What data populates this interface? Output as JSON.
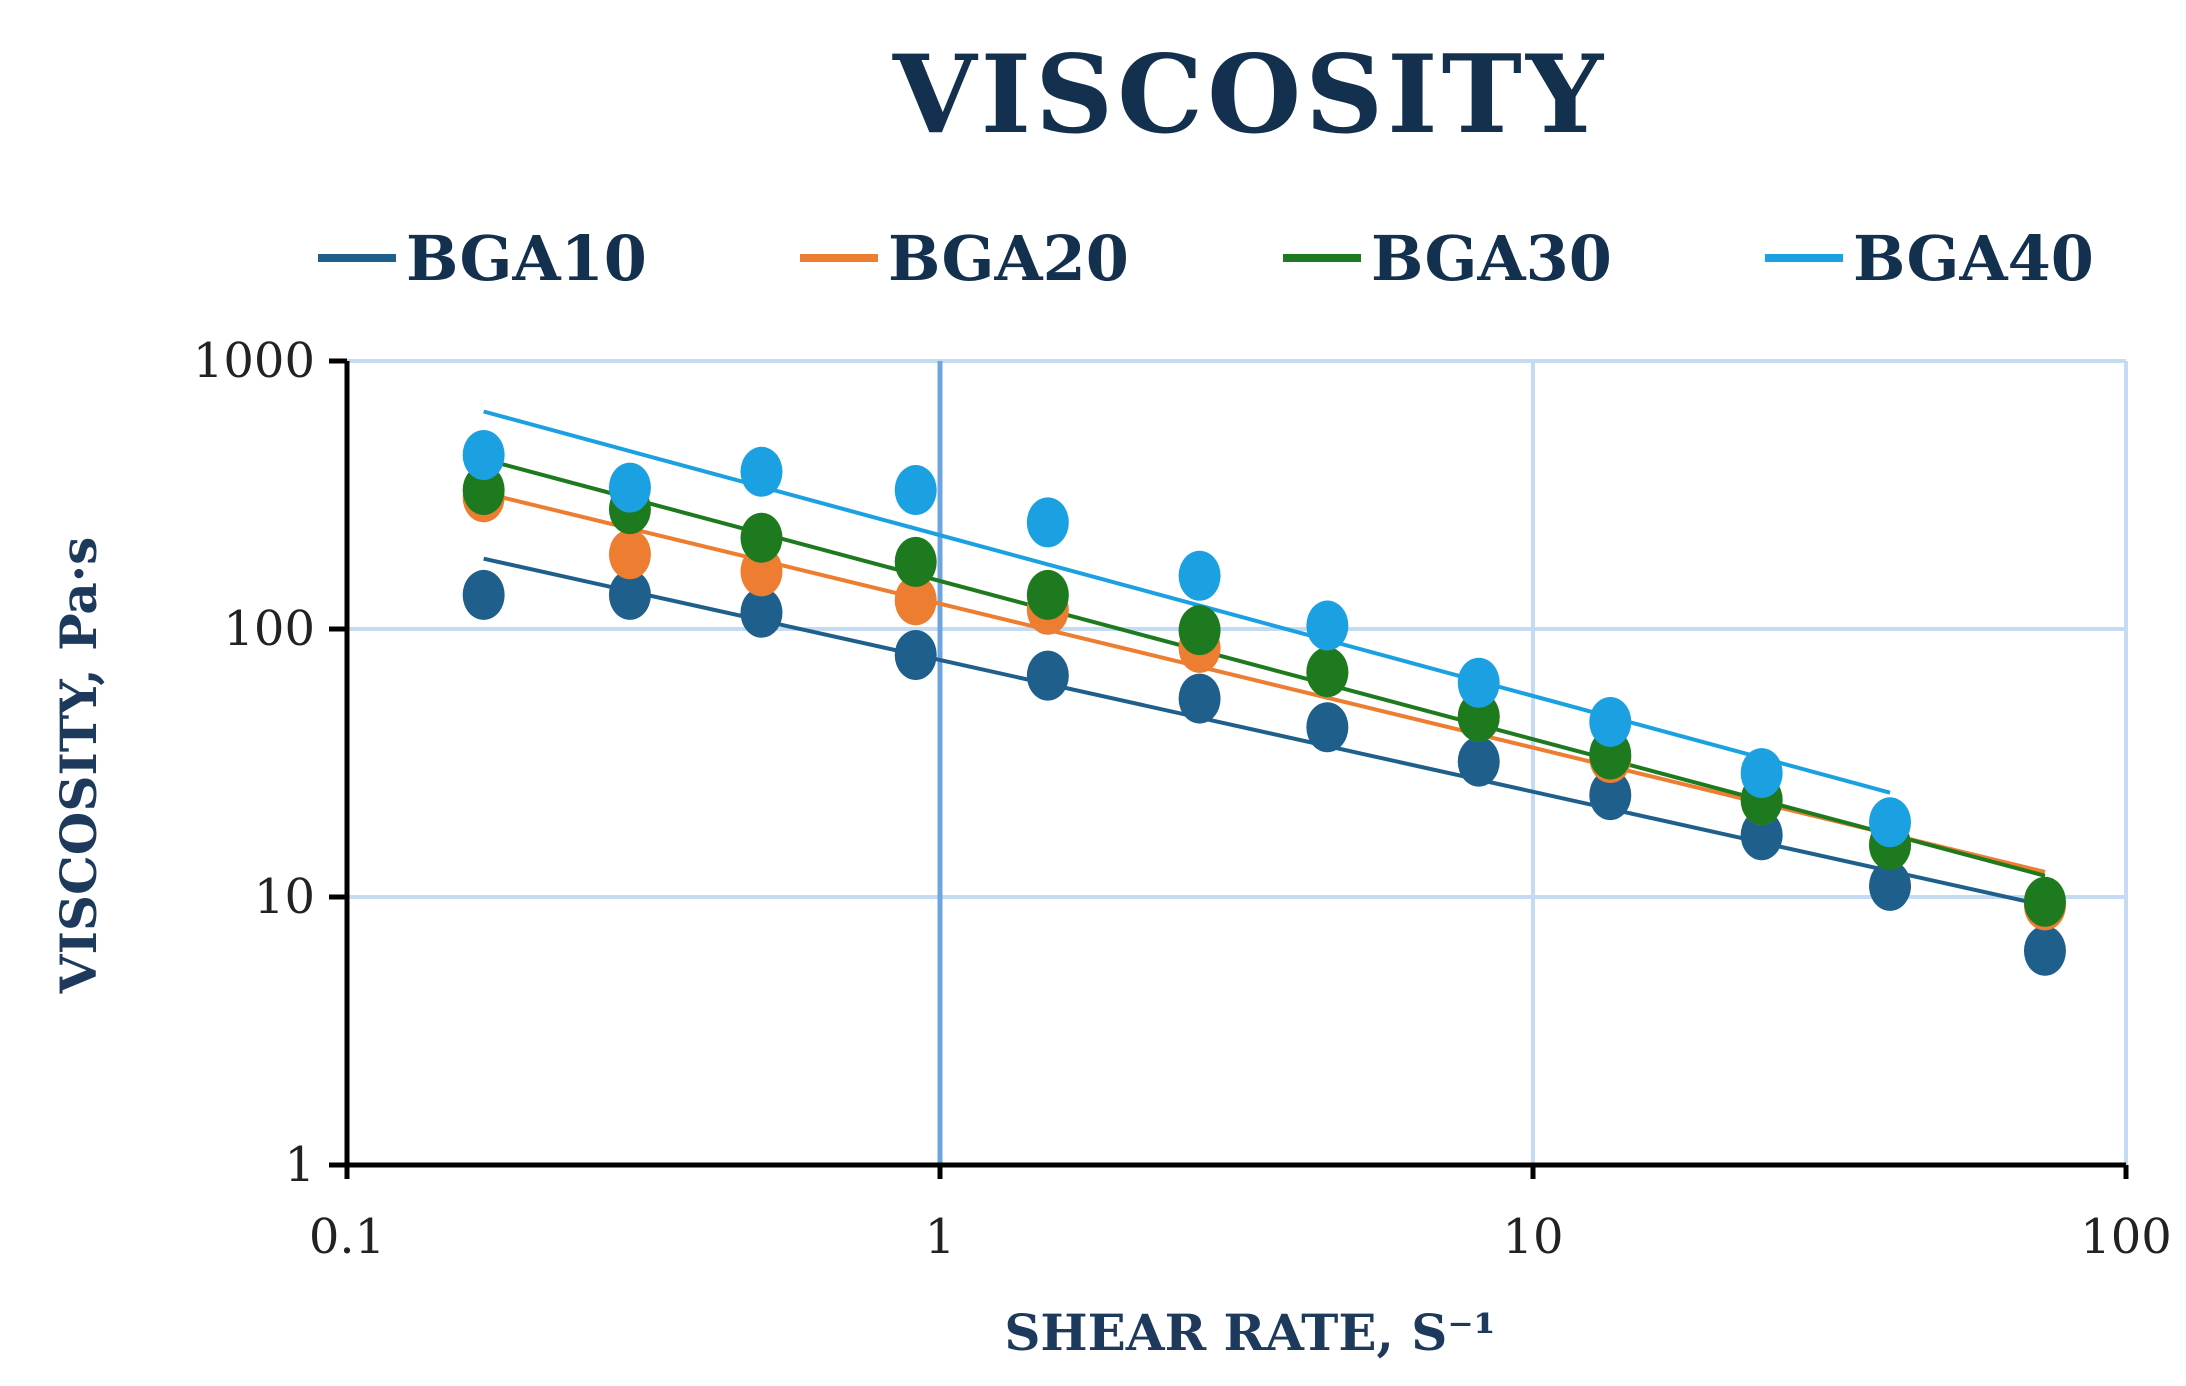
{
  "chart_data": {
    "type": "scatter",
    "title": "VISCOSITY",
    "xlabel": "SHEAR RATE, S⁻¹",
    "ylabel": "VISCOSITY, Pa·s",
    "xscale": "log",
    "yscale": "log",
    "xlim": [
      0.1,
      100
    ],
    "ylim": [
      1,
      1000
    ],
    "xticks": [
      "0.1",
      "1",
      "10",
      "100"
    ],
    "yticks": [
      "1",
      "10",
      "100",
      "1000"
    ],
    "grid": true,
    "legend_position": "top",
    "series": [
      {
        "name": "BGA10",
        "color": "#1f5f8b",
        "x": [
          0.17,
          0.3,
          0.5,
          0.91,
          1.52,
          2.74,
          4.5,
          8.1,
          13.5,
          24.3,
          40,
          73
        ],
        "y": [
          134,
          134,
          115,
          80,
          67,
          55,
          43,
          32,
          24,
          17,
          11,
          6.3
        ],
        "trendline": {
          "x": [
            0.17,
            73
          ],
          "y": [
            183,
            9.3
          ]
        }
      },
      {
        "name": "BGA20",
        "color": "#ed7d31",
        "x": [
          0.17,
          0.3,
          0.5,
          0.91,
          1.52,
          2.74,
          4.5,
          8.1,
          13.5,
          24.3,
          40,
          73
        ],
        "y": [
          310,
          190,
          164,
          128,
          118,
          85,
          69,
          47,
          33,
          23,
          15.7,
          9.3
        ],
        "trendline": {
          "x": [
            0.17,
            73
          ],
          "y": [
            322,
            12.4
          ]
        }
      },
      {
        "name": "BGA30",
        "color": "#1e7a1e",
        "x": [
          0.17,
          0.3,
          0.5,
          0.91,
          1.52,
          2.74,
          4.5,
          8.1,
          13.5,
          24.3,
          40,
          73
        ],
        "y": [
          330,
          280,
          219,
          178,
          134,
          99,
          69,
          47,
          34,
          23,
          15.6,
          9.6
        ],
        "trendline": {
          "x": [
            0.17,
            73
          ],
          "y": [
            430,
            12
          ]
        }
      },
      {
        "name": "BGA40",
        "color": "#1ba1e2",
        "x": [
          0.17,
          0.3,
          0.5,
          0.91,
          1.52,
          2.74,
          4.5,
          8.1,
          13.5,
          24.3,
          40
        ],
        "y": [
          446,
          337,
          386,
          330,
          250,
          158,
          103,
          63,
          45,
          29,
          19
        ],
        "trendline": {
          "x": [
            0.17,
            40
          ],
          "y": [
            648,
            24.5
          ]
        }
      }
    ]
  }
}
